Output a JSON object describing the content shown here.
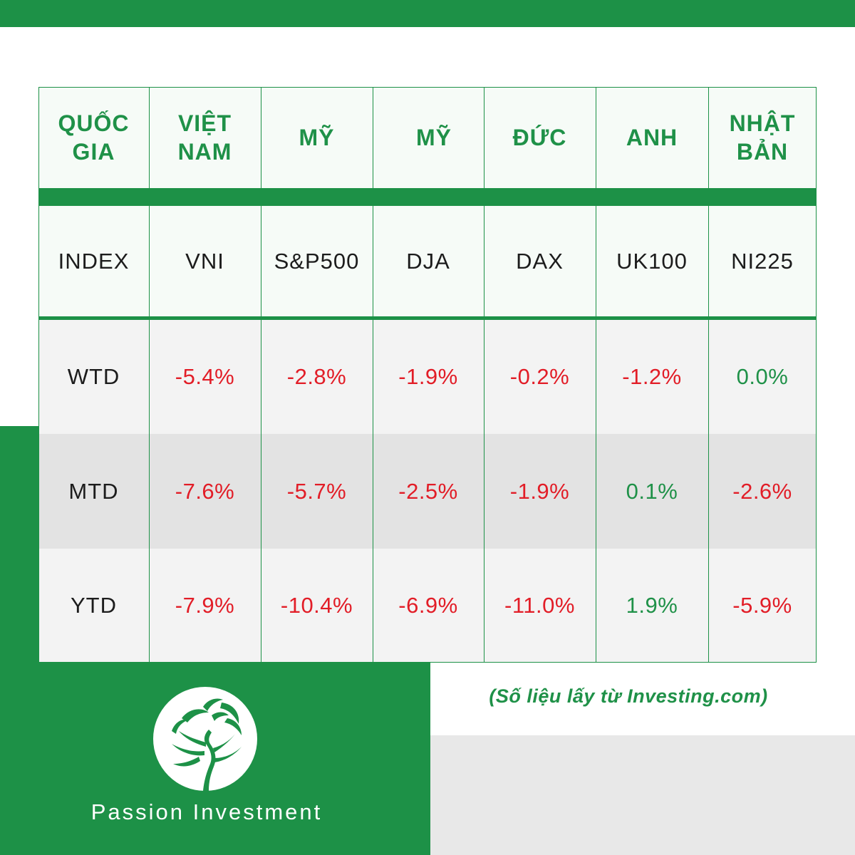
{
  "table": {
    "country_row": {
      "label": "QUỐC GIA",
      "cells": [
        "VIỆT NAM",
        "MỸ",
        "MỸ",
        "ĐỨC",
        "ANH",
        "NHẬT BẢN"
      ]
    },
    "index_row": {
      "label": "INDEX",
      "cells": [
        "VNI",
        "S&P500",
        "DJA",
        "DAX",
        "UK100",
        "NI225"
      ]
    },
    "data_rows": [
      {
        "label": "WTD",
        "values": [
          "-5.4%",
          "-2.8%",
          "-1.9%",
          "-0.2%",
          "-1.2%",
          "0.0%"
        ],
        "signs": [
          "neg",
          "neg",
          "neg",
          "neg",
          "neg",
          "pos"
        ]
      },
      {
        "label": "MTD",
        "values": [
          "-7.6%",
          "-5.7%",
          "-2.5%",
          "-1.9%",
          "0.1%",
          "-2.6%"
        ],
        "signs": [
          "neg",
          "neg",
          "neg",
          "neg",
          "pos",
          "neg"
        ]
      },
      {
        "label": "YTD",
        "values": [
          "-7.9%",
          "-10.4%",
          "-6.9%",
          "-11.0%",
          "1.9%",
          "-5.9%"
        ],
        "signs": [
          "neg",
          "neg",
          "neg",
          "neg",
          "pos",
          "neg"
        ]
      }
    ]
  },
  "source_note": "(Số liệu lấy từ Investing.com)",
  "brand": {
    "name": "Passion Investment",
    "logo_icon": "tree-icon"
  },
  "colors": {
    "brand_green": "#1d9147",
    "negative_red": "#e21d27",
    "positive_green": "#1f9148",
    "panel_gray": "#e8e8e8"
  }
}
